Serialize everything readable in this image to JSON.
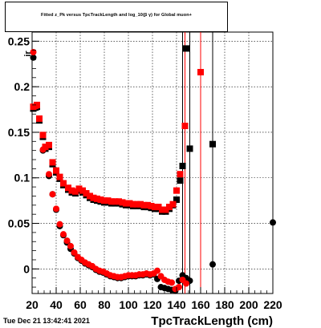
{
  "chart_data": {
    "type": "scatter",
    "title": "Fitted  z_Pk  versus TpcTrackLength and log_10(β γ) for Global muon+",
    "xlabel": "TpcTrackLength (cm)",
    "ylabel_partial": "ir",
    "xlim": [
      20,
      220
    ],
    "ylim": [
      -0.027,
      0.26
    ],
    "xticks": [
      20,
      40,
      60,
      80,
      100,
      120,
      140,
      160,
      180,
      200,
      220
    ],
    "yticks": [
      0,
      0.05,
      0.1,
      0.15,
      0.2,
      0.25
    ],
    "ytick_labels": [
      "0",
      "0.05",
      "0.1",
      "0.15",
      "0.2",
      "0.25"
    ],
    "grid": true,
    "series": [
      {
        "color": "#000000",
        "marker_upper": "square",
        "marker_lower": "circle",
        "upper_points": [
          [
            21,
            0.176
          ],
          [
            24,
            0.178
          ],
          [
            26,
            0.163
          ],
          [
            29,
            0.145
          ],
          [
            31,
            0.132
          ],
          [
            34,
            0.134
          ],
          [
            37,
            0.115
          ],
          [
            40,
            0.106
          ],
          [
            43,
            0.099
          ],
          [
            46,
            0.092
          ],
          [
            50,
            0.087
          ],
          [
            53,
            0.084
          ],
          [
            56,
            0.083
          ],
          [
            59,
            0.086
          ],
          [
            62,
            0.084
          ],
          [
            65,
            0.081
          ],
          [
            68,
            0.078
          ],
          [
            71,
            0.076
          ],
          [
            74,
            0.075
          ],
          [
            77,
            0.074
          ],
          [
            80,
            0.073
          ],
          [
            83,
            0.073
          ],
          [
            86,
            0.072
          ],
          [
            89,
            0.072
          ],
          [
            92,
            0.072
          ],
          [
            95,
            0.071
          ],
          [
            98,
            0.07
          ],
          [
            101,
            0.07
          ],
          [
            104,
            0.069
          ],
          [
            107,
            0.069
          ],
          [
            110,
            0.069
          ],
          [
            113,
            0.068
          ],
          [
            116,
            0.068
          ],
          [
            119,
            0.067
          ],
          [
            122,
            0.066
          ],
          [
            125,
            0.066
          ],
          [
            128,
            0.063
          ],
          [
            131,
            0.063
          ],
          [
            134,
            0.066
          ],
          [
            137,
            0.07
          ],
          [
            140,
            0.076
          ],
          [
            143,
            0.097
          ],
          [
            145,
            0.113
          ],
          [
            148,
            0.242
          ],
          [
            151,
            0.132
          ],
          [
            170,
            0.137
          ]
        ],
        "lower_points": [
          [
            21,
            0.232
          ],
          [
            24,
            0.177
          ],
          [
            29,
            0.13
          ],
          [
            34,
            0.102
          ],
          [
            37,
            0.082
          ],
          [
            40,
            0.065
          ],
          [
            43,
            0.047
          ],
          [
            46,
            0.037
          ],
          [
            49,
            0.029
          ],
          [
            52,
            0.022
          ],
          [
            55,
            0.017
          ],
          [
            58,
            0.012
          ],
          [
            61,
            0.009
          ],
          [
            64,
            0.006
          ],
          [
            67,
            0.004
          ],
          [
            70,
            0.002
          ],
          [
            73,
            -0.001
          ],
          [
            76,
            -0.003
          ],
          [
            79,
            -0.004
          ],
          [
            82,
            -0.006
          ],
          [
            85,
            -0.008
          ],
          [
            88,
            -0.009
          ],
          [
            91,
            -0.01
          ],
          [
            94,
            -0.01
          ],
          [
            97,
            -0.009
          ],
          [
            100,
            -0.008
          ],
          [
            103,
            -0.008
          ],
          [
            106,
            -0.008
          ],
          [
            109,
            -0.007
          ],
          [
            112,
            -0.007
          ],
          [
            115,
            -0.006
          ],
          [
            118,
            -0.007
          ],
          [
            121,
            -0.006
          ],
          [
            124,
            -0.011
          ],
          [
            127,
            -0.02
          ],
          [
            130,
            -0.021
          ],
          [
            133,
            -0.022
          ],
          [
            136,
            -0.023
          ],
          [
            139,
            -0.024
          ],
          [
            142,
            -0.013
          ],
          [
            145,
            -0.007
          ],
          [
            148,
            -0.01
          ],
          [
            151,
            -0.013
          ],
          [
            170,
            0.005
          ],
          [
            220,
            0.051
          ]
        ]
      },
      {
        "color": "#ff0000",
        "marker_upper": "square",
        "marker_lower": "circle",
        "upper_points": [
          [
            21,
            0.178
          ],
          [
            24,
            0.18
          ],
          [
            26,
            0.165
          ],
          [
            29,
            0.147
          ],
          [
            31,
            0.134
          ],
          [
            34,
            0.136
          ],
          [
            37,
            0.117
          ],
          [
            40,
            0.108
          ],
          [
            43,
            0.101
          ],
          [
            46,
            0.094
          ],
          [
            50,
            0.089
          ],
          [
            53,
            0.086
          ],
          [
            56,
            0.085
          ],
          [
            59,
            0.088
          ],
          [
            62,
            0.086
          ],
          [
            65,
            0.083
          ],
          [
            68,
            0.08
          ],
          [
            71,
            0.078
          ],
          [
            74,
            0.077
          ],
          [
            77,
            0.076
          ],
          [
            80,
            0.075
          ],
          [
            83,
            0.075
          ],
          [
            86,
            0.074
          ],
          [
            89,
            0.074
          ],
          [
            92,
            0.074
          ],
          [
            95,
            0.073
          ],
          [
            98,
            0.072
          ],
          [
            101,
            0.072
          ],
          [
            104,
            0.071
          ],
          [
            107,
            0.071
          ],
          [
            110,
            0.071
          ],
          [
            113,
            0.07
          ],
          [
            116,
            0.07
          ],
          [
            119,
            0.069
          ],
          [
            122,
            0.068
          ],
          [
            125,
            0.068
          ],
          [
            128,
            0.065
          ],
          [
            131,
            0.065
          ],
          [
            134,
            0.068
          ],
          [
            137,
            0.071
          ],
          [
            140,
            0.086
          ],
          [
            143,
            0.104
          ],
          [
            147,
            0.157
          ],
          [
            160,
            0.216
          ]
        ],
        "lower_points": [
          [
            21,
            0.238
          ],
          [
            24,
            0.179
          ],
          [
            29,
            0.131
          ],
          [
            34,
            0.104
          ],
          [
            37,
            0.082
          ],
          [
            40,
            0.066
          ],
          [
            43,
            0.049
          ],
          [
            46,
            0.038
          ],
          [
            49,
            0.031
          ],
          [
            52,
            0.025
          ],
          [
            55,
            0.018
          ],
          [
            58,
            0.013
          ],
          [
            61,
            0.01
          ],
          [
            64,
            0.007
          ],
          [
            67,
            0.005
          ],
          [
            70,
            0.003
          ],
          [
            73,
            0.0
          ],
          [
            76,
            -0.002
          ],
          [
            79,
            -0.003
          ],
          [
            82,
            -0.005
          ],
          [
            85,
            -0.007
          ],
          [
            88,
            -0.008
          ],
          [
            91,
            -0.009
          ],
          [
            94,
            -0.009
          ],
          [
            97,
            -0.008
          ],
          [
            100,
            -0.007
          ],
          [
            103,
            -0.007
          ],
          [
            106,
            -0.007
          ],
          [
            109,
            -0.006
          ],
          [
            112,
            -0.006
          ],
          [
            115,
            -0.005
          ],
          [
            118,
            -0.006
          ],
          [
            121,
            -0.005
          ],
          [
            124,
            -0.002
          ],
          [
            127,
            -0.008
          ],
          [
            130,
            -0.012
          ],
          [
            133,
            -0.014
          ],
          [
            136,
            -0.015
          ],
          [
            139,
            -0.022
          ],
          [
            142,
            -0.02
          ],
          [
            145,
            -0.012
          ],
          [
            148,
            -0.016
          ]
        ]
      }
    ],
    "error_bars": [
      {
        "color": "#000000",
        "x": 145,
        "y1": -0.027,
        "y2": 0.26
      },
      {
        "color": "#000000",
        "x": 151,
        "y1": -0.027,
        "y2": 0.26
      },
      {
        "color": "#000000",
        "x": 170,
        "y1": -0.027,
        "y2": 0.26
      },
      {
        "color": "#ff0000",
        "x": 147,
        "y1": -0.027,
        "y2": 0.26
      },
      {
        "color": "#ff0000",
        "x": 160,
        "y1": -0.027,
        "y2": 0.26
      }
    ]
  },
  "date_stamp": "Tue Dec 21 13:42:41 2021"
}
